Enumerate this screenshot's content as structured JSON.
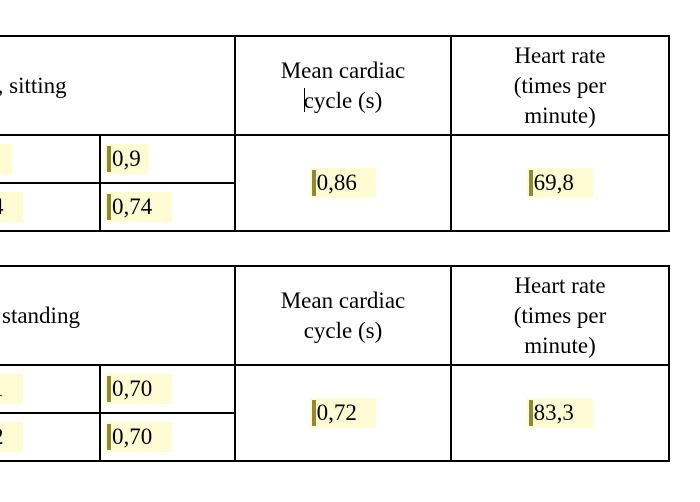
{
  "tables": [
    {
      "header_first": "ʼ, sitting",
      "header_mean": [
        "Mean cardiac",
        "cycle (s)"
      ],
      "header_rate": [
        "Heart rate",
        "(times per",
        "minute)"
      ],
      "row1_col1": "",
      "row1_col2": "0,9",
      "row2_col1": "4",
      "row2_col2": "0,74",
      "mean_value": "0,86",
      "rate_value": "69,8"
    },
    {
      "header_first": "standing",
      "header_mean": [
        "Mean cardiac",
        "cycle (s)"
      ],
      "header_rate": [
        "Heart rate",
        "(times per",
        "minute)"
      ],
      "row1_col1": "1",
      "row1_col2": "0,70",
      "row2_col1": "2",
      "row2_col2": "0,70",
      "mean_value": "0,72",
      "rate_value": "83,3"
    }
  ]
}
